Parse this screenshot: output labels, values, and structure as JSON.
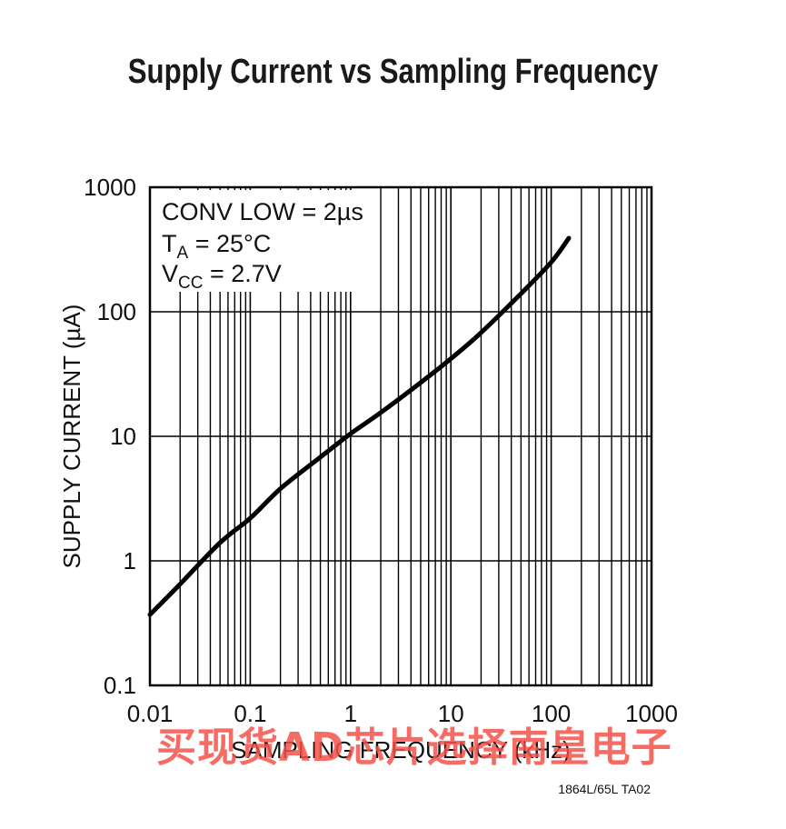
{
  "chart_data": {
    "type": "line",
    "title": "Supply Current vs Sampling Frequency",
    "xlabel": "SAMPLING FREQUENCY (kHz)",
    "ylabel": "SUPPLY CURRENT (µA)",
    "xscale": "log",
    "yscale": "log",
    "xlim": [
      0.01,
      1000
    ],
    "ylim": [
      0.1,
      1000
    ],
    "xticks": [
      "0.01",
      "0.1",
      "1",
      "10",
      "100",
      "1000"
    ],
    "yticks": [
      "0.1",
      "1",
      "10",
      "100",
      "1000"
    ],
    "grid": true,
    "annotations": {
      "line1": "CONV LOW = 2µs",
      "line2_main": "T",
      "line2_sub": "A",
      "line2_rest": " = 25°C",
      "line3_main": "V",
      "line3_sub": "CC",
      "line3_rest": " = 2.7V"
    },
    "series": [
      {
        "x": [
          0.01,
          0.02,
          0.05,
          0.1,
          0.2,
          0.5,
          1,
          2,
          5,
          10,
          20,
          50,
          100,
          150
        ],
        "y": [
          0.37,
          0.65,
          1.4,
          2.2,
          3.8,
          6.8,
          10.5,
          15.5,
          27,
          42,
          68,
          140,
          250,
          390
        ]
      }
    ],
    "figure_code": "1864L/65L TA02"
  },
  "watermark": "买现货AD芯片选择南皇电子",
  "colors": {
    "curve": "#000000",
    "grid": "#000000",
    "watermark": "#f4524a"
  }
}
